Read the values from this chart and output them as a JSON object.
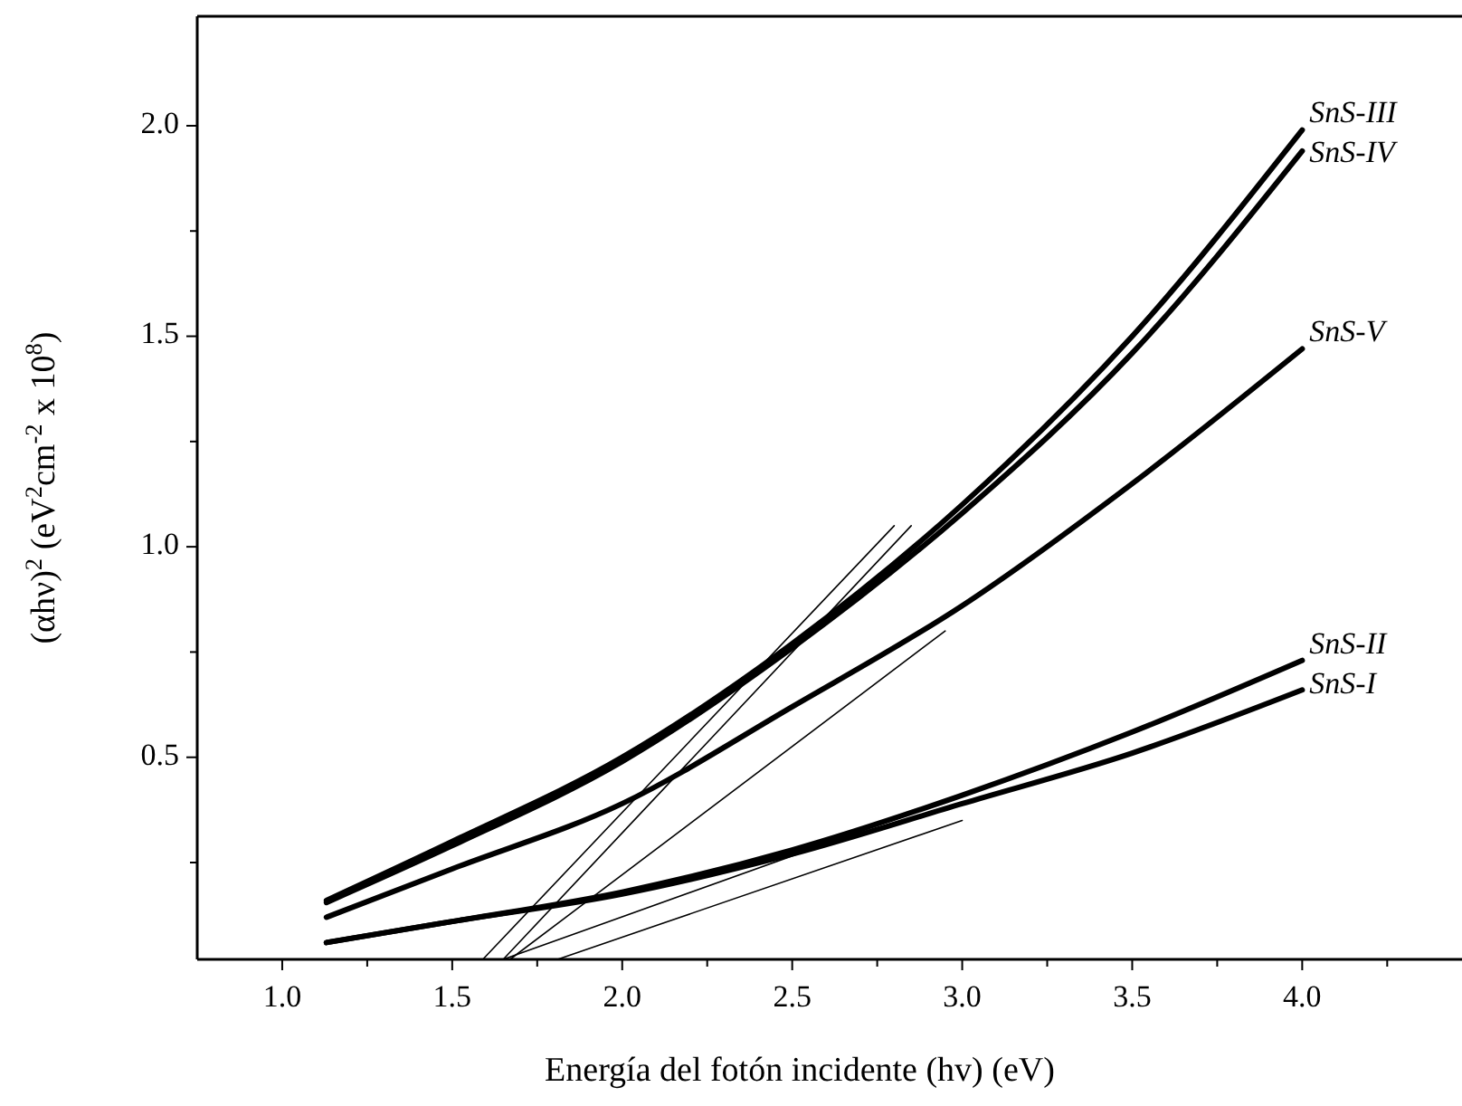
{
  "chart_data": {
    "type": "line",
    "xlabel": "Energía del fotón incidente (hv) (eV)",
    "ylabel": "(αhν)$^{2}$  (eV$^{2}$cm$^{-2}$ x 10$^{8}$)",
    "xlim": [
      0.75,
      4.47
    ],
    "ylim": [
      0.02,
      2.26
    ],
    "xticks": [
      {
        "value": 1.0,
        "label": "1.0"
      },
      {
        "value": 1.25,
        "label": null
      },
      {
        "value": 1.5,
        "label": "1.5"
      },
      {
        "value": 1.75,
        "label": null
      },
      {
        "value": 2.0,
        "label": "2.0"
      },
      {
        "value": 2.25,
        "label": null
      },
      {
        "value": 2.5,
        "label": "2.5"
      },
      {
        "value": 2.75,
        "label": null
      },
      {
        "value": 3.0,
        "label": "3.0"
      },
      {
        "value": 3.25,
        "label": null
      },
      {
        "value": 3.5,
        "label": "3.5"
      },
      {
        "value": 3.75,
        "label": null
      },
      {
        "value": 4.0,
        "label": "4.0"
      },
      {
        "value": 4.25,
        "label": null
      }
    ],
    "yticks": [
      {
        "value": 0.25,
        "label": null
      },
      {
        "value": 0.5,
        "label": "0.5"
      },
      {
        "value": 0.75,
        "label": null
      },
      {
        "value": 1.0,
        "label": "1.0"
      },
      {
        "value": 1.25,
        "label": null
      },
      {
        "value": 1.5,
        "label": "1.5"
      },
      {
        "value": 1.75,
        "label": null
      },
      {
        "value": 2.0,
        "label": "2.0"
      }
    ],
    "grid": false,
    "marker": "none",
    "line_style": "solid",
    "x": [
      1.13,
      1.5,
      2.0,
      2.5,
      3.0,
      3.5,
      4.0
    ],
    "series": [
      {
        "name": "SnS-III",
        "color": "#000000",
        "values": [
          0.16,
          0.3,
          0.5,
          0.77,
          1.1,
          1.5,
          1.99
        ]
      },
      {
        "name": "SnS-IV",
        "color": "#000000",
        "values": [
          0.155,
          0.29,
          0.49,
          0.76,
          1.08,
          1.46,
          1.94
        ]
      },
      {
        "name": "SnS-V",
        "color": "#000000",
        "values": [
          0.12,
          0.235,
          0.39,
          0.62,
          0.86,
          1.15,
          1.47
        ]
      },
      {
        "name": "SnS-II",
        "color": "#000000",
        "values": [
          0.06,
          0.11,
          0.18,
          0.28,
          0.41,
          0.56,
          0.73
        ]
      },
      {
        "name": "SnS-I",
        "color": "#000000",
        "values": [
          0.06,
          0.11,
          0.175,
          0.27,
          0.39,
          0.51,
          0.66
        ]
      },
      {
        "color": "#000000",
        "x": [
          1.59,
          2.8
        ],
        "values": [
          0.02,
          1.05
        ]
      },
      {
        "color": "#000000",
        "x": [
          1.65,
          2.85
        ],
        "values": [
          0.02,
          1.05
        ]
      },
      {
        "color": "#000000",
        "x": [
          1.67,
          2.95
        ],
        "values": [
          0.02,
          0.8
        ]
      },
      {
        "color": "#000000",
        "x": [
          1.65,
          3.0
        ],
        "values": [
          0.02,
          0.41
        ]
      },
      {
        "color": "#000000",
        "x": [
          1.81,
          3.0
        ],
        "values": [
          0.02,
          0.35
        ]
      }
    ]
  }
}
